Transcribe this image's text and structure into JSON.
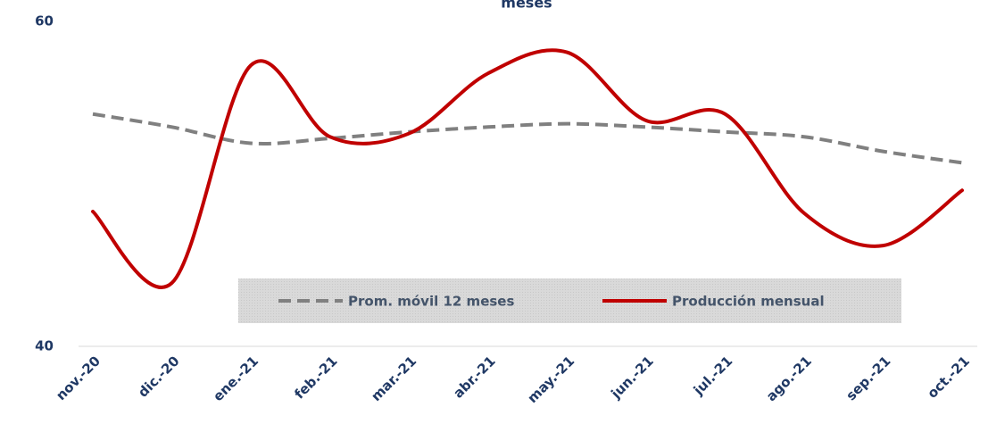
{
  "chart_data": {
    "type": "line",
    "title": "meses",
    "categories": [
      "nov.-20",
      "dic.-20",
      "ene.-21",
      "feb.-21",
      "mar.-21",
      "abr.-21",
      "may.-21",
      "jun.-21",
      "jul.-21",
      "ago.-21",
      "sep.-21",
      "oct.-21"
    ],
    "series": [
      {
        "name": "Prom. móvil 12 meses",
        "color": "#808080",
        "dash": true,
        "values": [
          54.3,
          53.5,
          52.5,
          52.8,
          53.2,
          53.5,
          53.7,
          53.5,
          53.2,
          52.9,
          52.0,
          51.3
        ]
      },
      {
        "name": "Producción mensual",
        "color": "#c00000",
        "dash": false,
        "values": [
          48.3,
          43.9,
          57.3,
          52.9,
          53.1,
          56.8,
          58.1,
          53.9,
          54.3,
          48.2,
          46.2,
          49.6
        ]
      }
    ],
    "ylim": [
      40,
      60
    ],
    "yticks": [
      40,
      60
    ]
  }
}
